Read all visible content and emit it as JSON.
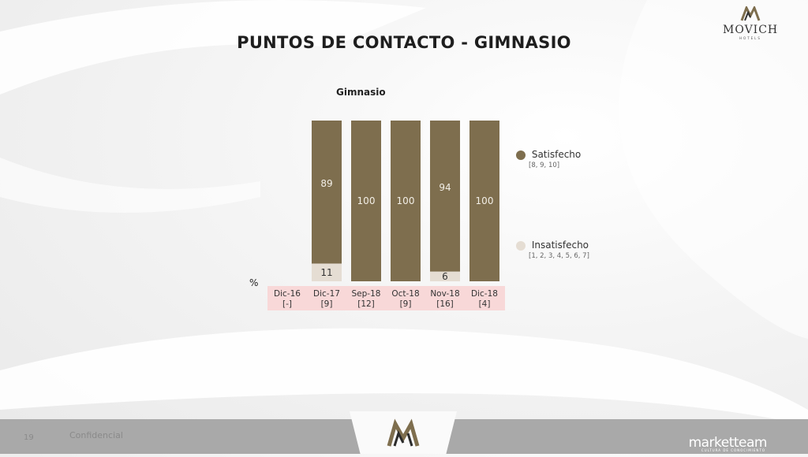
{
  "page": {
    "title": "PUNTOS DE CONTACTO - GIMNASIO",
    "percent_symbol": "%",
    "footer_page_number": "19",
    "footer_text": "Confidencial"
  },
  "brand": {
    "top_logo_text": "MOVICH",
    "top_logo_sub": "HOTELS",
    "footer_logo_text": "marketteam",
    "footer_logo_sub": "CULTURA DE CONOCIMIENTO"
  },
  "colors": {
    "satisfecho": "#7e6e4e",
    "insatisfecho": "#e5ddd3",
    "category_band": "#f8d8d8"
  },
  "chart_data": {
    "type": "bar",
    "stacked": true,
    "orientation": "vertical",
    "title": "Gimnasio",
    "xlabel": "",
    "ylabel": "%",
    "ylim": [
      0,
      100
    ],
    "grid": false,
    "legend_position": "right",
    "categories": [
      "Dic-16",
      "Dic-17",
      "Sep-18",
      "Oct-18",
      "Nov-18",
      "Dic-18"
    ],
    "base_sizes": [
      "[-]",
      "[9]",
      "[12]",
      "[9]",
      "[16]",
      "[4]"
    ],
    "series": [
      {
        "name": "Insatisfecho",
        "note": "[1, 2, 3, 4, 5, 6, 7]",
        "color": "#e5ddd3",
        "values": [
          null,
          11,
          0,
          0,
          6,
          0
        ]
      },
      {
        "name": "Satisfecho",
        "note": "[8, 9, 10]",
        "color": "#7e6e4e",
        "values": [
          null,
          89,
          100,
          100,
          94,
          100
        ]
      }
    ]
  }
}
